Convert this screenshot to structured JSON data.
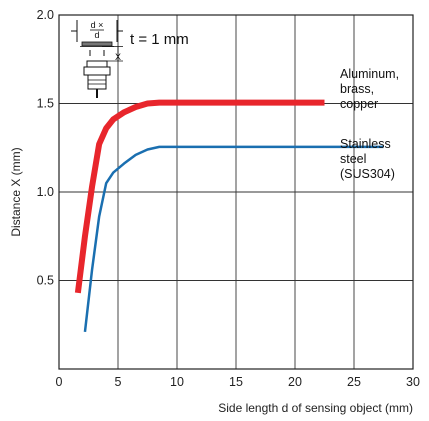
{
  "chart_data": {
    "type": "line",
    "xlabel": "Side length d of sensing object (mm)",
    "ylabel": "Distance X (mm)",
    "xlim": [
      0,
      30
    ],
    "ylim": [
      0,
      2.0
    ],
    "x_ticks": [
      0,
      5,
      10,
      15,
      20,
      25,
      30
    ],
    "x_tick_labels": [
      "0",
      "5",
      "10",
      "15",
      "20",
      "25",
      "30"
    ],
    "y_ticks": [
      0.5,
      1.0,
      1.5,
      2.0
    ],
    "y_tick_labels": [
      "0.5",
      "1.0",
      "1.5",
      "2.0"
    ],
    "grid": true,
    "annotation": "t = 1 mm",
    "inset_symbols": [
      "d ×",
      "d",
      "X"
    ],
    "series": [
      {
        "name": "Aluminum, brass, copper",
        "name_lines": [
          "Aluminum,",
          "brass,",
          "copper"
        ],
        "color": "#e8262c",
        "line_width": 6,
        "x": [
          1.6,
          2.2,
          2.8,
          3.4,
          4.0,
          4.6,
          5.5,
          6.5,
          7.5,
          8.5,
          10,
          15,
          20,
          22.5
        ],
        "y": [
          0.43,
          0.75,
          1.03,
          1.27,
          1.36,
          1.41,
          1.45,
          1.48,
          1.5,
          1.505,
          1.505,
          1.505,
          1.505,
          1.505
        ]
      },
      {
        "name": "Stainless steel (SUS304)",
        "name_lines": [
          "Stainless",
          "steel",
          "(SUS304)"
        ],
        "color": "#1a6fb0",
        "line_width": 2.5,
        "x": [
          2.2,
          2.8,
          3.4,
          4.0,
          4.6,
          5.5,
          6.5,
          7.5,
          8.5,
          10,
          15,
          20,
          25,
          27.5
        ],
        "y": [
          0.21,
          0.56,
          0.86,
          1.05,
          1.11,
          1.16,
          1.21,
          1.24,
          1.255,
          1.255,
          1.255,
          1.255,
          1.255,
          1.255
        ]
      }
    ]
  }
}
